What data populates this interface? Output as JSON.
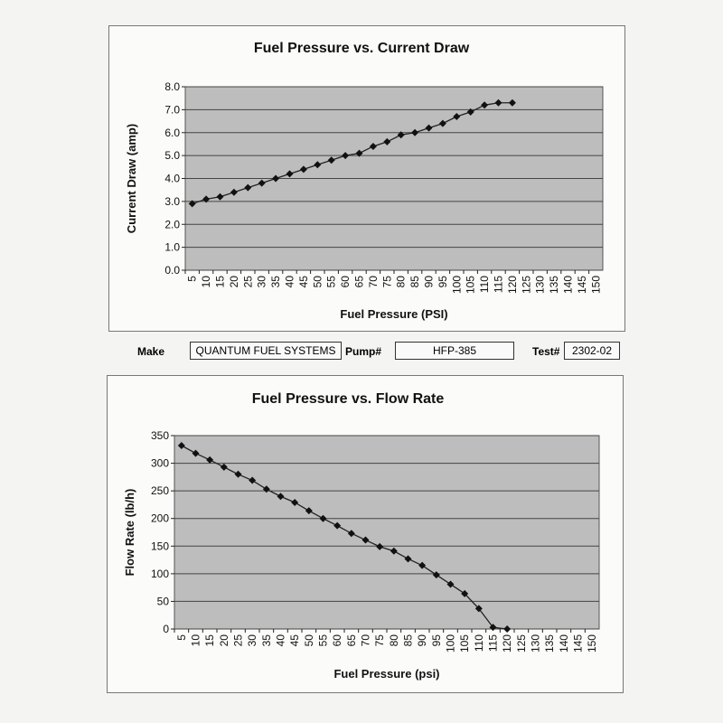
{
  "chart_data": [
    {
      "type": "line",
      "title": "Fuel Pressure vs. Current Draw",
      "xlabel": "Fuel Pressure (PSI)",
      "ylabel": "Current Draw (amp)",
      "categories": [
        5,
        10,
        15,
        20,
        25,
        30,
        35,
        40,
        45,
        50,
        55,
        60,
        65,
        70,
        75,
        80,
        85,
        90,
        95,
        100,
        105,
        110,
        115,
        120,
        125,
        130,
        135,
        140,
        145,
        150
      ],
      "ylim": [
        0,
        8
      ],
      "yticks": [
        "0.0",
        "1.0",
        "2.0",
        "3.0",
        "4.0",
        "5.0",
        "6.0",
        "7.0",
        "8.0"
      ],
      "grid": true,
      "x": [
        5,
        10,
        15,
        20,
        25,
        30,
        35,
        40,
        45,
        50,
        55,
        60,
        65,
        70,
        75,
        80,
        85,
        90,
        95,
        100,
        105,
        110,
        115,
        120
      ],
      "values": [
        2.9,
        3.1,
        3.2,
        3.4,
        3.6,
        3.8,
        4.0,
        4.2,
        4.4,
        4.6,
        4.8,
        5.0,
        5.1,
        5.4,
        5.6,
        5.9,
        6.0,
        6.2,
        6.4,
        6.7,
        6.9,
        7.2,
        7.3,
        7.3
      ]
    },
    {
      "type": "line",
      "title": "Fuel Pressure vs. Flow Rate",
      "xlabel": "Fuel Pressure (psi)",
      "ylabel": "Flow Rate (lb/h)",
      "categories": [
        5,
        10,
        15,
        20,
        25,
        30,
        35,
        40,
        45,
        50,
        55,
        60,
        65,
        70,
        75,
        80,
        85,
        90,
        95,
        100,
        105,
        110,
        115,
        120,
        125,
        130,
        135,
        140,
        145,
        150
      ],
      "ylim": [
        0,
        350
      ],
      "yticks": [
        "0",
        "50",
        "100",
        "150",
        "200",
        "250",
        "300",
        "350"
      ],
      "grid": true,
      "x": [
        5,
        10,
        15,
        20,
        25,
        30,
        35,
        40,
        45,
        50,
        55,
        60,
        65,
        70,
        75,
        80,
        85,
        90,
        95,
        100,
        105,
        110,
        115,
        120
      ],
      "values": [
        332,
        318,
        306,
        293,
        280,
        269,
        253,
        240,
        229,
        214,
        200,
        187,
        173,
        161,
        149,
        141,
        127,
        115,
        98,
        81,
        64,
        37,
        3,
        0
      ]
    }
  ],
  "info": {
    "make_label": "Make",
    "make": "QUANTUM FUEL SYSTEMS",
    "pump_label": "Pump#",
    "pump": "HFP-385",
    "test_label": "Test#",
    "test": "2302-02"
  },
  "colors": {
    "plot_bg": "#bdbdbd",
    "line": "#222222",
    "grid": "#444444"
  }
}
